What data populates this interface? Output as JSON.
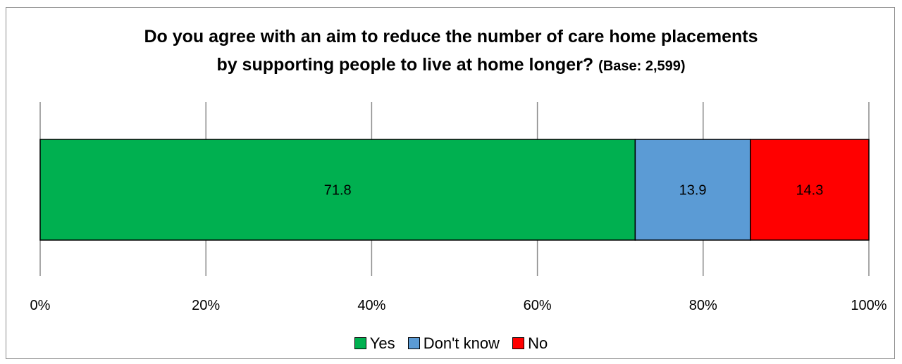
{
  "chart_data": {
    "type": "bar",
    "orientation": "horizontal",
    "stacked": true,
    "title_main": "Do you agree with an aim to reduce the number of care home placements",
    "title_line2": "by supporting people to live at home longer?",
    "title_base": "(Base: 2,599)",
    "xlim": [
      0,
      100
    ],
    "x_ticks": [
      "0%",
      "20%",
      "40%",
      "60%",
      "80%",
      "100%"
    ],
    "x_tick_values": [
      0,
      20,
      40,
      60,
      80,
      100
    ],
    "grid": true,
    "legend_position": "bottom",
    "series": [
      {
        "name": "Yes",
        "value": 71.8,
        "label": "71.8",
        "color": "#00b050"
      },
      {
        "name": "Don't know",
        "value": 13.9,
        "label": "13.9",
        "color": "#5b9bd5"
      },
      {
        "name": "No",
        "value": 14.3,
        "label": "14.3",
        "color": "#ff0000"
      }
    ]
  }
}
